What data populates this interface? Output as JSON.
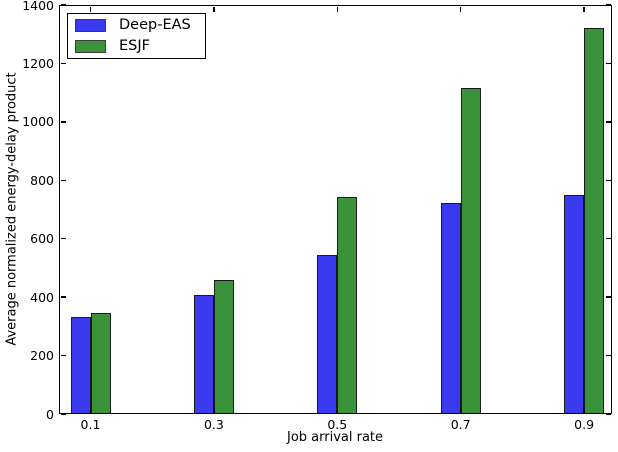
{
  "chart_data": {
    "type": "bar",
    "title": "",
    "xlabel": "Job arrival rate",
    "ylabel": "Average normalized energy-delay product",
    "categories": [
      "0.1",
      "0.3",
      "0.5",
      "0.7",
      "0.9"
    ],
    "series": [
      {
        "name": "Deep-EAS",
        "color": "#3a3af0",
        "values": [
          332,
          408,
          545,
          722,
          748
        ]
      },
      {
        "name": "ESJF",
        "color": "#3a923a",
        "values": [
          347,
          460,
          742,
          1115,
          1320
        ]
      }
    ],
    "ylim": [
      0,
      1400
    ],
    "yticks": [
      0,
      200,
      400,
      600,
      800,
      1000,
      1200,
      1400
    ],
    "grid": false,
    "legend_position": "upper-left",
    "bar_edge_color": "#1a1a1a",
    "spine_color": "#000000",
    "background_color": "#ffffff"
  }
}
